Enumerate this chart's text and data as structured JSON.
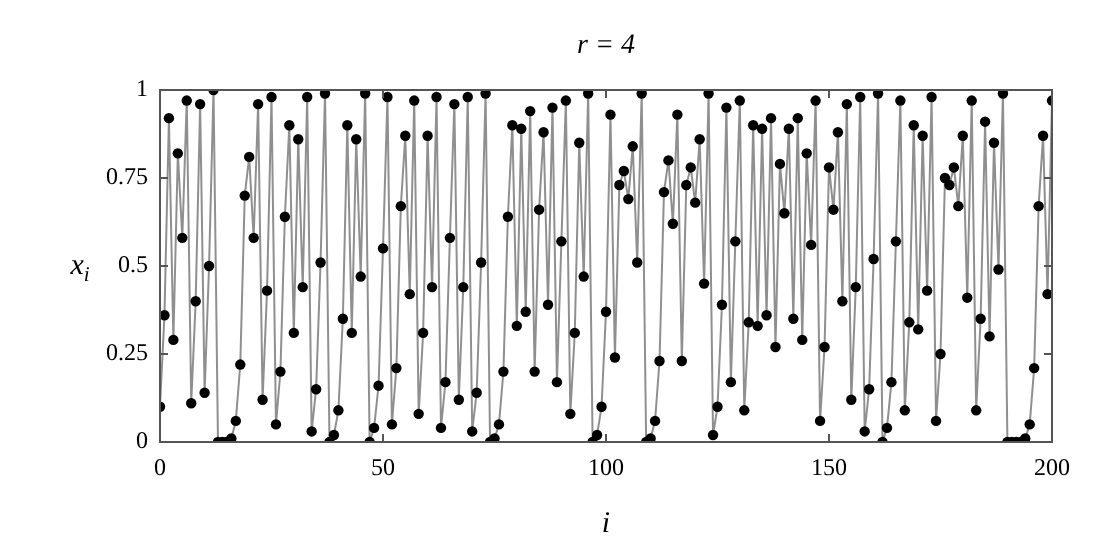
{
  "chart_data": {
    "type": "line",
    "title": "r = 4",
    "xlabel": "i",
    "ylabel": "x$_{i}$",
    "x": [
      0,
      1,
      2,
      3,
      4,
      5,
      6,
      7,
      8,
      9,
      10,
      11,
      12,
      13,
      14,
      15,
      16,
      17,
      18,
      19,
      20,
      21,
      22,
      23,
      24,
      25,
      26,
      27,
      28,
      29,
      30,
      31,
      32,
      33,
      34,
      35,
      36,
      37,
      38,
      39,
      40,
      41,
      42,
      43,
      44,
      45,
      46,
      47,
      48,
      49,
      50,
      51,
      52,
      53,
      54,
      55,
      56,
      57,
      58,
      59,
      60,
      61,
      62,
      63,
      64,
      65,
      66,
      67,
      68,
      69,
      70,
      71,
      72,
      73,
      74,
      75,
      76,
      77,
      78,
      79,
      80,
      81,
      82,
      83,
      84,
      85,
      86,
      87,
      88,
      89,
      90,
      91,
      92,
      93,
      94,
      95,
      96,
      97,
      98,
      99,
      100,
      101,
      102,
      103,
      104,
      105,
      106,
      107,
      108,
      109,
      110,
      111,
      112,
      113,
      114,
      115,
      116,
      117,
      118,
      119,
      120,
      121,
      122,
      123,
      124,
      125,
      126,
      127,
      128,
      129,
      130,
      131,
      132,
      133,
      134,
      135,
      136,
      137,
      138,
      139,
      140,
      141,
      142,
      143,
      144,
      145,
      146,
      147,
      148,
      149,
      150,
      151,
      152,
      153,
      154,
      155,
      156,
      157,
      158,
      159,
      160,
      161,
      162,
      163,
      164,
      165,
      166,
      167,
      168,
      169,
      170,
      171,
      172,
      173,
      174,
      175,
      176,
      177,
      178,
      179,
      180,
      181,
      182,
      183,
      184,
      185,
      186,
      187,
      188,
      189,
      190,
      191,
      192,
      193,
      194,
      195,
      196,
      197,
      198,
      199,
      200
    ],
    "series": [
      {
        "color": "#000000",
        "values": [
          0.1,
          0.36,
          0.92,
          0.29,
          0.82,
          0.58,
          0.97,
          0.11,
          0.4,
          0.96,
          0.14,
          0.5,
          1.0,
          0,
          0,
          0,
          0.01,
          0.06,
          0.22,
          0.7,
          0.81,
          0.58,
          0.96,
          0.12,
          0.43,
          0.98,
          0.05,
          0.2,
          0.64,
          0.9,
          0.31,
          0.86,
          0.44,
          0.98,
          0.03,
          0.15,
          0.51,
          0.99,
          0,
          0.02,
          0.09,
          0.35,
          0.9,
          0.31,
          0.86,
          0.47,
          0.99,
          0,
          0.04,
          0.16,
          0.55,
          0.98,
          0.05,
          0.21,
          0.67,
          0.87,
          0.42,
          0.97,
          0.08,
          0.31,
          0.87,
          0.44,
          0.98,
          0.04,
          0.17,
          0.58,
          0.96,
          0.12,
          0.44,
          0.98,
          0.03,
          0.14,
          0.51,
          0.99,
          0,
          0.01,
          0.05,
          0.2,
          0.64,
          0.9,
          0.33,
          0.89,
          0.37,
          0.94,
          0.2,
          0.66,
          0.88,
          0.39,
          0.95,
          0.17,
          0.57,
          0.97,
          0.08,
          0.31,
          0.85,
          0.47,
          0.99,
          0,
          0.02,
          0.1,
          0.37,
          0.93,
          0.24,
          0.73,
          0.77,
          0.69,
          0.84,
          0.51,
          0.99,
          0,
          0.01,
          0.06,
          0.23,
          0.71,
          0.8,
          0.62,
          0.93,
          0.23,
          0.73,
          0.78,
          0.68,
          0.86,
          0.45,
          0.99,
          0.02,
          0.1,
          0.39,
          0.95,
          0.17,
          0.57,
          0.97,
          0.09,
          0.34,
          0.9,
          0.33,
          0.89,
          0.36,
          0.92,
          0.27,
          0.79,
          0.65,
          0.89,
          0.35,
          0.92,
          0.29,
          0.82,
          0.56,
          0.97,
          0.06,
          0.27,
          0.78,
          0.66,
          0.88,
          0.4,
          0.96,
          0.12,
          0.44,
          0.98,
          0.03,
          0.15,
          0.52,
          0.99,
          0,
          0.04,
          0.17,
          0.57,
          0.97,
          0.09,
          0.34,
          0.9,
          0.32,
          0.87,
          0.43,
          0.98,
          0.06,
          0.25,
          0.75,
          0.73,
          0.78,
          0.67,
          0.87,
          0.41,
          0.97,
          0.09,
          0.35,
          0.91,
          0.3,
          0.85,
          0.49,
          0.99,
          0,
          0,
          0,
          0,
          0.01,
          0.05,
          0.21,
          0.67,
          0.87,
          0.42,
          0.97
        ]
      }
    ],
    "xlim": [
      0,
      200
    ],
    "xticks": [
      0,
      50,
      100,
      150,
      200
    ],
    "ylim": [
      0,
      1
    ],
    "yticks": [
      0,
      0.25,
      0.5,
      0.75,
      1
    ],
    "marker": "circle",
    "line_style": "solid"
  }
}
